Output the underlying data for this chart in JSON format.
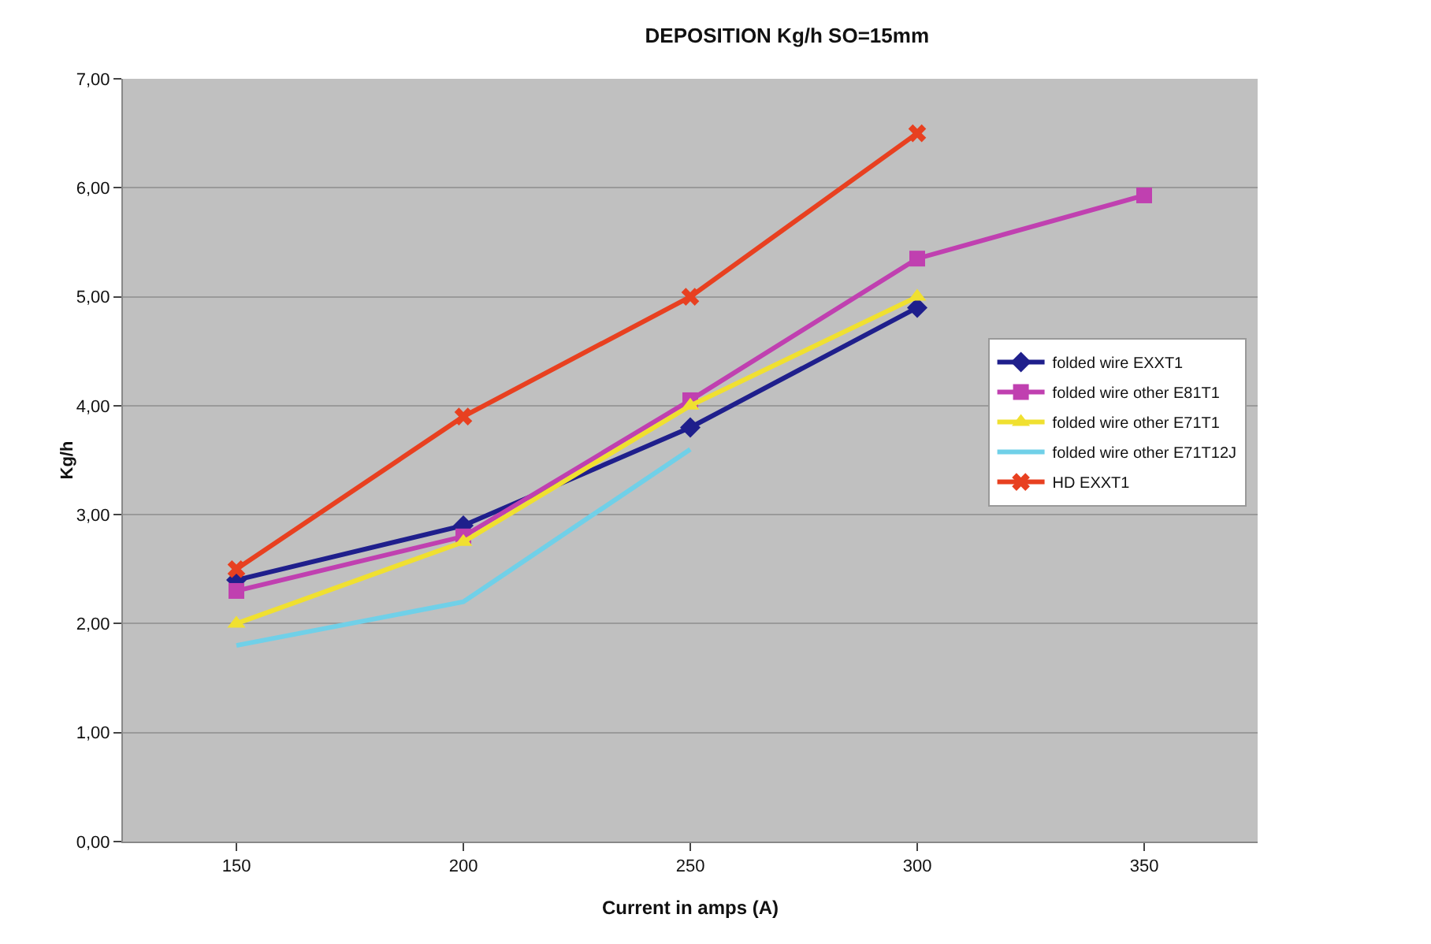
{
  "chart_data": {
    "type": "line",
    "title": "DEPOSITION Kg/h SO=15mm",
    "xlabel": "Current in amps (A)",
    "ylabel": "Kg/h",
    "x": [
      150,
      200,
      250,
      300,
      350
    ],
    "xlim": [
      125,
      375
    ],
    "xticks": [
      150,
      200,
      250,
      300,
      350
    ],
    "ylim": [
      0,
      7
    ],
    "yticks": [
      {
        "value": 0,
        "label": "0,00"
      },
      {
        "value": 1,
        "label": "1,00"
      },
      {
        "value": 2,
        "label": "2,00"
      },
      {
        "value": 3,
        "label": "3,00"
      },
      {
        "value": 4,
        "label": "4,00"
      },
      {
        "value": 5,
        "label": "5,00"
      },
      {
        "value": 6,
        "label": "6,00"
      },
      {
        "value": 7,
        "label": "7,00"
      }
    ],
    "grid": "y",
    "legend": "right",
    "line_style": "solid",
    "series": [
      {
        "name": "folded wire EXXT1",
        "color": "#1f1f8c",
        "marker": "diamond",
        "values": [
          2.4,
          2.9,
          3.8,
          4.9,
          null
        ]
      },
      {
        "name": "folded wire other E81T1",
        "color": "#c040b0",
        "marker": "square",
        "values": [
          2.3,
          2.8,
          4.05,
          5.35,
          5.93
        ]
      },
      {
        "name": "folded wire other E71T1",
        "color": "#f0e030",
        "marker": "triangle",
        "values": [
          2.0,
          2.75,
          4.0,
          5.0,
          null
        ]
      },
      {
        "name": "folded wire other E71T12J",
        "color": "#70d0e8",
        "marker": "none",
        "values": [
          1.8,
          2.2,
          3.6,
          null,
          null
        ]
      },
      {
        "name": "HD EXXT1",
        "color": "#e84020",
        "marker": "cross",
        "values": [
          2.5,
          3.9,
          5.0,
          6.5,
          null
        ]
      }
    ]
  }
}
